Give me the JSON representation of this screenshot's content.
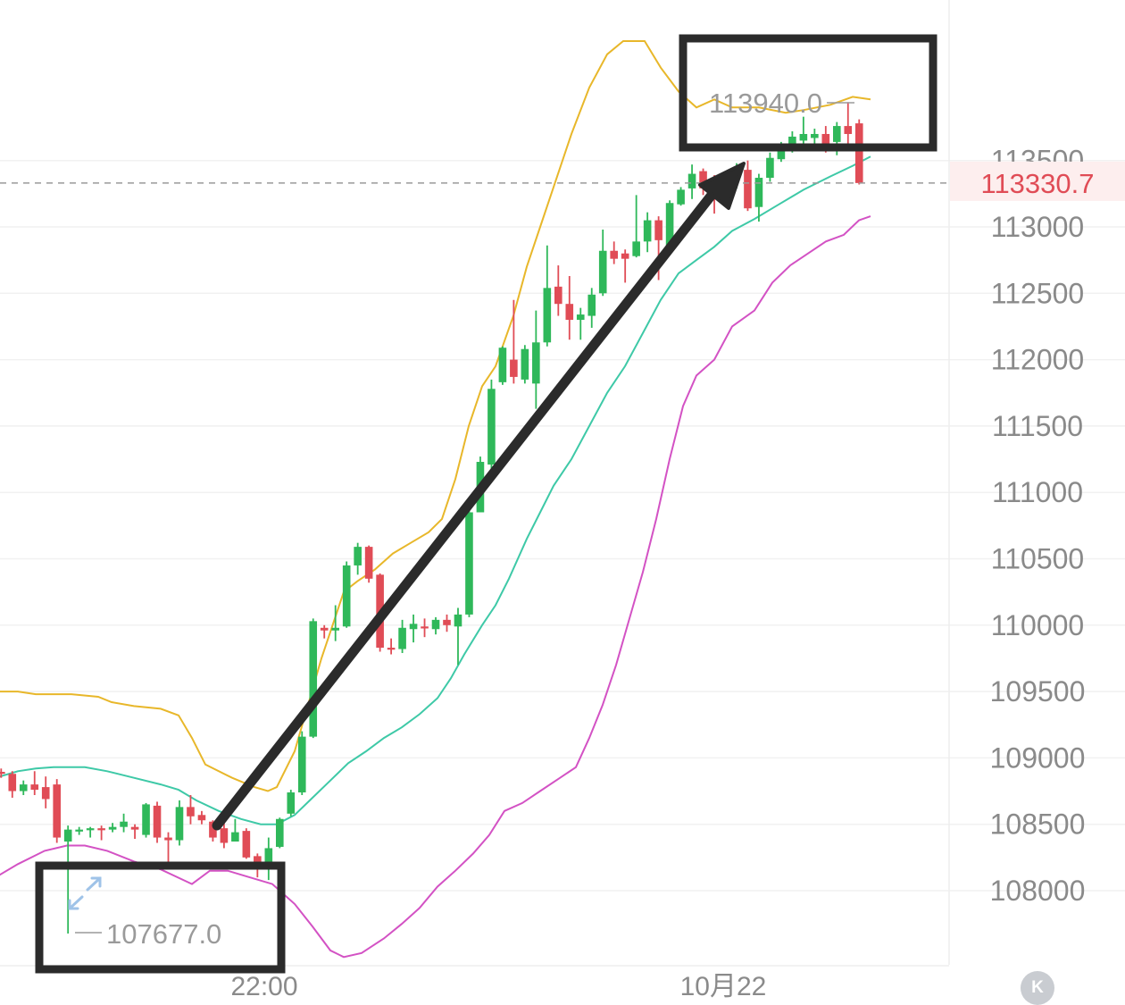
{
  "chart_data": {
    "type": "candlestick",
    "title": "",
    "y_ticks": [
      "108000",
      "108500",
      "109000",
      "109500",
      "110000",
      "110500",
      "111000",
      "111500",
      "112000",
      "112500",
      "113000",
      "113500"
    ],
    "x_ticks": [
      "22:00",
      "10月22"
    ],
    "ylim": [
      107400,
      114700
    ],
    "last_price": "113330.7",
    "annotations": {
      "high_label": "113940.0",
      "low_label": "107677.0"
    },
    "candles": [
      [
        108895,
        108920,
        108850,
        108880
      ],
      [
        108880,
        108900,
        108700,
        108750
      ],
      [
        108750,
        108830,
        108720,
        108800
      ],
      [
        108800,
        108900,
        108720,
        108760
      ],
      [
        108780,
        108860,
        108620,
        108690
      ],
      [
        108800,
        108840,
        108360,
        108400
      ],
      [
        108370,
        108490,
        107677,
        108460
      ],
      [
        108450,
        108480,
        108420,
        108460
      ],
      [
        108460,
        108480,
        108400,
        108470
      ],
      [
        108470,
        108490,
        108380,
        108460
      ],
      [
        108460,
        108510,
        108440,
        108480
      ],
      [
        108480,
        108580,
        108440,
        108520
      ],
      [
        108480,
        108500,
        108390,
        108460
      ],
      [
        108420,
        108660,
        108400,
        108650
      ],
      [
        108640,
        108670,
        108360,
        108400
      ],
      [
        108400,
        108440,
        108200,
        108380
      ],
      [
        108380,
        108680,
        108340,
        108630
      ],
      [
        108630,
        108720,
        108500,
        108560
      ],
      [
        108570,
        108600,
        108500,
        108530
      ],
      [
        108520,
        108530,
        108370,
        108400
      ],
      [
        108470,
        108510,
        108320,
        108360
      ],
      [
        108370,
        108540,
        108380,
        108440
      ],
      [
        108450,
        108470,
        108240,
        108250
      ],
      [
        108260,
        108280,
        108100,
        108210
      ],
      [
        108200,
        108400,
        108080,
        108320
      ],
      [
        108330,
        108550,
        108320,
        108540
      ],
      [
        108580,
        108760,
        108560,
        108740
      ],
      [
        108740,
        109200,
        108720,
        109160
      ],
      [
        109160,
        110050,
        109150,
        110030
      ],
      [
        109980,
        110000,
        109900,
        109960
      ],
      [
        109960,
        110150,
        109880,
        109980
      ],
      [
        109990,
        110480,
        109980,
        110450
      ],
      [
        110450,
        110620,
        110380,
        110590
      ],
      [
        110590,
        110600,
        110320,
        110350
      ],
      [
        110380,
        110390,
        109800,
        109830
      ],
      [
        109830,
        109900,
        109780,
        109820
      ],
      [
        109820,
        110040,
        109790,
        109980
      ],
      [
        109970,
        110080,
        109870,
        110010
      ],
      [
        109990,
        110050,
        109910,
        109980
      ],
      [
        109970,
        110060,
        109930,
        110040
      ],
      [
        110040,
        110080,
        109950,
        110000
      ],
      [
        109990,
        110130,
        109700,
        110080
      ],
      [
        110080,
        110870,
        110060,
        110850
      ],
      [
        110850,
        111270,
        110850,
        111230
      ],
      [
        111210,
        111850,
        111150,
        111780
      ],
      [
        111830,
        112100,
        111810,
        112090
      ],
      [
        112000,
        112450,
        111820,
        111870
      ],
      [
        111850,
        112110,
        111820,
        112080
      ],
      [
        111820,
        112370,
        111630,
        112130
      ],
      [
        112130,
        112860,
        112100,
        112540
      ],
      [
        112550,
        112710,
        112330,
        112420
      ],
      [
        112420,
        112630,
        112150,
        112300
      ],
      [
        112300,
        112390,
        112150,
        112340
      ],
      [
        112330,
        112540,
        112240,
        112490
      ],
      [
        112500,
        112980,
        112480,
        112820
      ],
      [
        112820,
        112890,
        112720,
        112760
      ],
      [
        112800,
        112830,
        112580,
        112760
      ],
      [
        112780,
        113240,
        112770,
        112890
      ],
      [
        112890,
        113110,
        112810,
        113050
      ],
      [
        113050,
        113080,
        112600,
        112900
      ],
      [
        112850,
        113200,
        112840,
        113180
      ],
      [
        113170,
        113300,
        113160,
        113280
      ],
      [
        113290,
        113470,
        113210,
        113400
      ],
      [
        113420,
        113440,
        113240,
        113290
      ],
      [
        113290,
        113390,
        113100,
        113270
      ],
      [
        113300,
        113420,
        113250,
        113340
      ],
      [
        113370,
        113480,
        113290,
        113420
      ],
      [
        113430,
        113500,
        113120,
        113140
      ],
      [
        113150,
        113400,
        113040,
        113370
      ],
      [
        113370,
        113560,
        113340,
        113520
      ],
      [
        113510,
        113640,
        113490,
        113610
      ],
      [
        113600,
        113720,
        113560,
        113680
      ],
      [
        113650,
        113830,
        113590,
        113700
      ],
      [
        113670,
        113740,
        113600,
        113700
      ],
      [
        113700,
        113760,
        113560,
        113620
      ],
      [
        113640,
        113790,
        113540,
        113760
      ],
      [
        113760,
        113940,
        113590,
        113700
      ],
      [
        113780,
        113810,
        113320,
        113330.7
      ]
    ],
    "bollinger": {
      "upper": [
        [
          -5,
          109500
        ],
        [
          20,
          109500
        ],
        [
          40,
          109480
        ],
        [
          80,
          109480
        ],
        [
          110,
          109460
        ],
        [
          125,
          109420
        ],
        [
          150,
          109390
        ],
        [
          180,
          109370
        ],
        [
          200,
          109320
        ],
        [
          215,
          109150
        ],
        [
          230,
          108950
        ],
        [
          260,
          108850
        ],
        [
          285,
          108780
        ],
        [
          300,
          108750
        ],
        [
          310,
          108780
        ],
        [
          330,
          109050
        ],
        [
          345,
          109400
        ],
        [
          360,
          109750
        ],
        [
          375,
          110050
        ],
        [
          385,
          110250
        ],
        [
          400,
          110330
        ],
        [
          420,
          110420
        ],
        [
          440,
          110540
        ],
        [
          460,
          110620
        ],
        [
          480,
          110700
        ],
        [
          495,
          110800
        ],
        [
          510,
          111100
        ],
        [
          525,
          111500
        ],
        [
          540,
          111800
        ],
        [
          555,
          111950
        ],
        [
          575,
          112330
        ],
        [
          590,
          112700
        ],
        [
          605,
          113000
        ],
        [
          620,
          113300
        ],
        [
          640,
          113700
        ],
        [
          660,
          114050
        ],
        [
          680,
          114300
        ],
        [
          698,
          114400
        ],
        [
          722,
          114400
        ],
        [
          740,
          114200
        ],
        [
          760,
          114020
        ],
        [
          780,
          113900
        ],
        [
          800,
          113960
        ],
        [
          820,
          113900
        ],
        [
          850,
          113900
        ],
        [
          880,
          113860
        ],
        [
          900,
          113880
        ],
        [
          930,
          113920
        ],
        [
          955,
          113980
        ],
        [
          975,
          113960
        ]
      ],
      "middle": [
        [
          -5,
          108850
        ],
        [
          20,
          108900
        ],
        [
          40,
          108920
        ],
        [
          60,
          108930
        ],
        [
          95,
          108930
        ],
        [
          120,
          108900
        ],
        [
          150,
          108850
        ],
        [
          180,
          108800
        ],
        [
          200,
          108760
        ],
        [
          220,
          108680
        ],
        [
          245,
          108600
        ],
        [
          270,
          108540
        ],
        [
          292,
          108500
        ],
        [
          310,
          108500
        ],
        [
          330,
          108570
        ],
        [
          350,
          108700
        ],
        [
          370,
          108830
        ],
        [
          390,
          108960
        ],
        [
          410,
          109050
        ],
        [
          430,
          109150
        ],
        [
          450,
          109230
        ],
        [
          470,
          109330
        ],
        [
          490,
          109450
        ],
        [
          505,
          109600
        ],
        [
          520,
          109780
        ],
        [
          540,
          110000
        ],
        [
          555,
          110150
        ],
        [
          570,
          110350
        ],
        [
          590,
          110650
        ],
        [
          605,
          110850
        ],
        [
          620,
          111050
        ],
        [
          640,
          111250
        ],
        [
          660,
          111500
        ],
        [
          680,
          111750
        ],
        [
          700,
          111950
        ],
        [
          720,
          112200
        ],
        [
          740,
          112450
        ],
        [
          760,
          112650
        ],
        [
          780,
          112750
        ],
        [
          800,
          112850
        ],
        [
          820,
          112970
        ],
        [
          845,
          113060
        ],
        [
          870,
          113160
        ],
        [
          900,
          113280
        ],
        [
          930,
          113380
        ],
        [
          955,
          113460
        ],
        [
          975,
          113530
        ]
      ],
      "lower": [
        [
          -5,
          108100
        ],
        [
          20,
          108200
        ],
        [
          50,
          108300
        ],
        [
          75,
          108340
        ],
        [
          95,
          108340
        ],
        [
          120,
          108300
        ],
        [
          150,
          108220
        ],
        [
          180,
          108160
        ],
        [
          215,
          108050
        ],
        [
          235,
          108150
        ],
        [
          255,
          108150
        ],
        [
          275,
          108110
        ],
        [
          305,
          108050
        ],
        [
          330,
          107900
        ],
        [
          350,
          107730
        ],
        [
          370,
          107550
        ],
        [
          385,
          107500
        ],
        [
          405,
          107530
        ],
        [
          430,
          107640
        ],
        [
          450,
          107750
        ],
        [
          470,
          107870
        ],
        [
          490,
          108030
        ],
        [
          510,
          108150
        ],
        [
          530,
          108280
        ],
        [
          548,
          108420
        ],
        [
          565,
          108600
        ],
        [
          585,
          108660
        ],
        [
          605,
          108750
        ],
        [
          625,
          108840
        ],
        [
          645,
          108930
        ],
        [
          660,
          109150
        ],
        [
          675,
          109400
        ],
        [
          690,
          109700
        ],
        [
          705,
          110050
        ],
        [
          720,
          110400
        ],
        [
          735,
          110800
        ],
        [
          750,
          111250
        ],
        [
          765,
          111650
        ],
        [
          780,
          111880
        ],
        [
          800,
          112000
        ],
        [
          820,
          112250
        ],
        [
          845,
          112370
        ],
        [
          865,
          112580
        ],
        [
          885,
          112710
        ],
        [
          905,
          112800
        ],
        [
          925,
          112890
        ],
        [
          945,
          112940
        ],
        [
          962,
          113050
        ],
        [
          975,
          113080
        ]
      ]
    }
  },
  "colors": {
    "up": "#2fb85a",
    "down": "#e04c56",
    "upper_band": "#e8b72a",
    "middle_band": "#3ec9a7",
    "lower_band": "#d352c4",
    "arrow": "#2b2b2b",
    "box": "#2b2b2b"
  },
  "icons": {
    "expand": "expand-icon",
    "kline": "kline-badge-icon"
  },
  "kline_badge": "K"
}
